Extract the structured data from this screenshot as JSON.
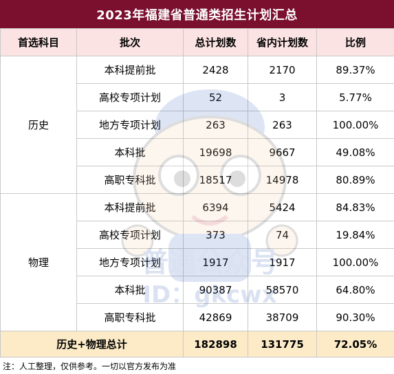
{
  "title": "2023年福建省普通类招生计划汇总",
  "headers": [
    "首选科目",
    "批次",
    "总计划数",
    "省内计划数",
    "比例"
  ],
  "groups": [
    {
      "subject": "历史",
      "rows": [
        {
          "batch": "本科提前批",
          "total": "2428",
          "in_province": "2170",
          "ratio": "89.37%"
        },
        {
          "batch": "高校专项计划",
          "total": "52",
          "in_province": "3",
          "ratio": "5.77%"
        },
        {
          "batch": "地方专项计划",
          "total": "263",
          "in_province": "263",
          "ratio": "100.00%"
        },
        {
          "batch": "本科批",
          "total": "19698",
          "in_province": "9667",
          "ratio": "49.08%"
        },
        {
          "batch": "高职专科批",
          "total": "18517",
          "in_province": "14978",
          "ratio": "80.89%"
        }
      ]
    },
    {
      "subject": "物理",
      "rows": [
        {
          "batch": "本科提前批",
          "total": "6394",
          "in_province": "5424",
          "ratio": "84.83%"
        },
        {
          "batch": "高校专项计划",
          "total": "373",
          "in_province": "74",
          "ratio": "19.84%"
        },
        {
          "batch": "地方专项计划",
          "total": "1917",
          "in_province": "1917",
          "ratio": "100.00%"
        },
        {
          "batch": "本科批",
          "total": "90387",
          "in_province": "58570",
          "ratio": "64.80%"
        },
        {
          "batch": "高职专科批",
          "total": "42869",
          "in_province": "38709",
          "ratio": "90.30%"
        }
      ]
    }
  ],
  "summary": {
    "label": "历史+物理总计",
    "total": "182898",
    "in_province": "131775",
    "ratio": "72.05%"
  },
  "footnote": "注：人工整理，仅供参考。一切以官方发布为准",
  "watermark": {
    "text": "普通公众号",
    "id_text": "ID：gkcwx"
  },
  "colors": {
    "title_bg": "#7a0f2e",
    "header_bg": "#fbe3e3",
    "summary_bg": "#fdebc8"
  }
}
